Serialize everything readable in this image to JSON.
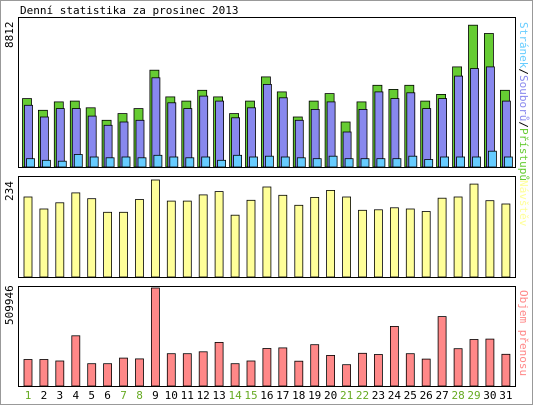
{
  "title": "Denní statistika za prosinec 2013",
  "colors": {
    "hits": "#66cc33",
    "files": "#8888ee",
    "pages": "#66ccff",
    "visits": "#ffff99",
    "kbytes": "#ff8888",
    "weekend_label": "#66aa22",
    "day_label": "#000000",
    "border": "#000000",
    "frame": "#999999"
  },
  "chart_data": [
    {
      "type": "bar",
      "name": "hits-files-pages",
      "categories": [
        "1",
        "2",
        "3",
        "4",
        "5",
        "6",
        "7",
        "8",
        "9",
        "10",
        "11",
        "12",
        "13",
        "14",
        "15",
        "16",
        "17",
        "18",
        "19",
        "20",
        "21",
        "22",
        "23",
        "24",
        "25",
        "26",
        "27",
        "28",
        "29",
        "30",
        "31"
      ],
      "weekend_days": [
        "1",
        "7",
        "8",
        "14",
        "15",
        "21",
        "22",
        "28",
        "29"
      ],
      "ymax_label": "8812",
      "ylim": [
        0,
        8812
      ],
      "legend": [
        {
          "text": "Stránek",
          "color": "#66ccff"
        },
        {
          "text": "/",
          "color": "#000000"
        },
        {
          "text": "Souborů",
          "color": "#8888ee"
        },
        {
          "text": "/",
          "color": "#000000"
        },
        {
          "text": "Přístupů",
          "color": "#66cc33"
        }
      ],
      "series": [
        {
          "name": "Přístupů",
          "values": [
            4100,
            3400,
            3900,
            3950,
            3550,
            2800,
            3200,
            3500,
            5800,
            4200,
            3950,
            4600,
            4200,
            3200,
            3950,
            5400,
            4500,
            3000,
            3950,
            4400,
            2700,
            3900,
            4900,
            4650,
            4900,
            3950,
            4350,
            6000,
            8500,
            8000,
            4600
          ]
        },
        {
          "name": "Souborů",
          "values": [
            3700,
            3000,
            3500,
            3500,
            3050,
            2500,
            2700,
            2800,
            5350,
            3850,
            3500,
            4250,
            3950,
            2950,
            3550,
            4950,
            4150,
            2800,
            3450,
            3900,
            2100,
            3450,
            4500,
            4100,
            4450,
            3500,
            4100,
            5450,
            5900,
            6000,
            3950
          ]
        },
        {
          "name": "Stránek",
          "values": [
            500,
            400,
            350,
            750,
            600,
            550,
            600,
            550,
            700,
            600,
            550,
            600,
            400,
            700,
            600,
            650,
            600,
            550,
            500,
            650,
            500,
            500,
            500,
            500,
            650,
            450,
            600,
            600,
            600,
            950,
            600
          ]
        }
      ]
    },
    {
      "type": "bar",
      "name": "visits",
      "categories": [
        "1",
        "2",
        "3",
        "4",
        "5",
        "6",
        "7",
        "8",
        "9",
        "10",
        "11",
        "12",
        "13",
        "14",
        "15",
        "16",
        "17",
        "18",
        "19",
        "20",
        "21",
        "22",
        "23",
        "24",
        "25",
        "26",
        "27",
        "28",
        "29",
        "30",
        "31"
      ],
      "ymax_label": "234",
      "ylim": [
        0,
        234
      ],
      "legend": [
        {
          "text": "Návštěv",
          "color": "#ffff99"
        }
      ],
      "series": [
        {
          "name": "Návštěv",
          "values": [
            193,
            164,
            179,
            203,
            189,
            156,
            156,
            187,
            234,
            183,
            183,
            198,
            206,
            149,
            185,
            217,
            197,
            173,
            192,
            209,
            193,
            161,
            162,
            167,
            164,
            158,
            190,
            193,
            224,
            184,
            176
          ]
        }
      ]
    },
    {
      "type": "bar",
      "name": "kbytes",
      "categories": [
        "1",
        "2",
        "3",
        "4",
        "5",
        "6",
        "7",
        "8",
        "9",
        "10",
        "11",
        "12",
        "13",
        "14",
        "15",
        "16",
        "17",
        "18",
        "19",
        "20",
        "21",
        "22",
        "23",
        "24",
        "25",
        "26",
        "27",
        "28",
        "29",
        "30",
        "31"
      ],
      "ymax_label": "509946",
      "ylim": [
        0,
        509946
      ],
      "legend": [
        {
          "text": "Objem přenosu",
          "color": "#ff8888"
        }
      ],
      "series": [
        {
          "name": "Objem přenosu",
          "values": [
            138000,
            138000,
            130000,
            261000,
            116000,
            116000,
            145000,
            141000,
            509946,
            168000,
            168000,
            178000,
            227000,
            116000,
            130000,
            195000,
            198000,
            129000,
            215000,
            159000,
            111000,
            170000,
            164000,
            310000,
            168000,
            140000,
            361000,
            194000,
            242000,
            244000,
            165000
          ]
        }
      ]
    }
  ]
}
